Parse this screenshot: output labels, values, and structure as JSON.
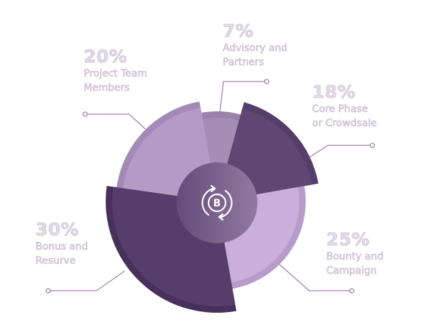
{
  "chart_data": {
    "type": "pie",
    "style": "exploded radial segments with leader lines",
    "segments": [
      {
        "percent": "7%",
        "value": 7,
        "label": "Advisory and\nPartners",
        "color": "#a58db5",
        "rim": "#9a82ab"
      },
      {
        "percent": "18%",
        "value": 18,
        "label": "Core Phase\nor Crowdsale",
        "color": "#5f4673",
        "rim": "#543d68"
      },
      {
        "percent": "25%",
        "value": 25,
        "label": "Bounty and\nCampaign",
        "color": "#c9afda",
        "rim": "#b69cc8"
      },
      {
        "percent": "30%",
        "value": 30,
        "label": "Bonus and\nResurve",
        "color": "#553e6b",
        "rim": "#48305d"
      },
      {
        "percent": "20%",
        "value": 20,
        "label": "Project Team\nMembers",
        "color": "#b39bc6",
        "rim": "#a48bb7"
      }
    ],
    "center_icon": "bitcoin-exchange-icon",
    "leader_color": "#a57fae"
  }
}
